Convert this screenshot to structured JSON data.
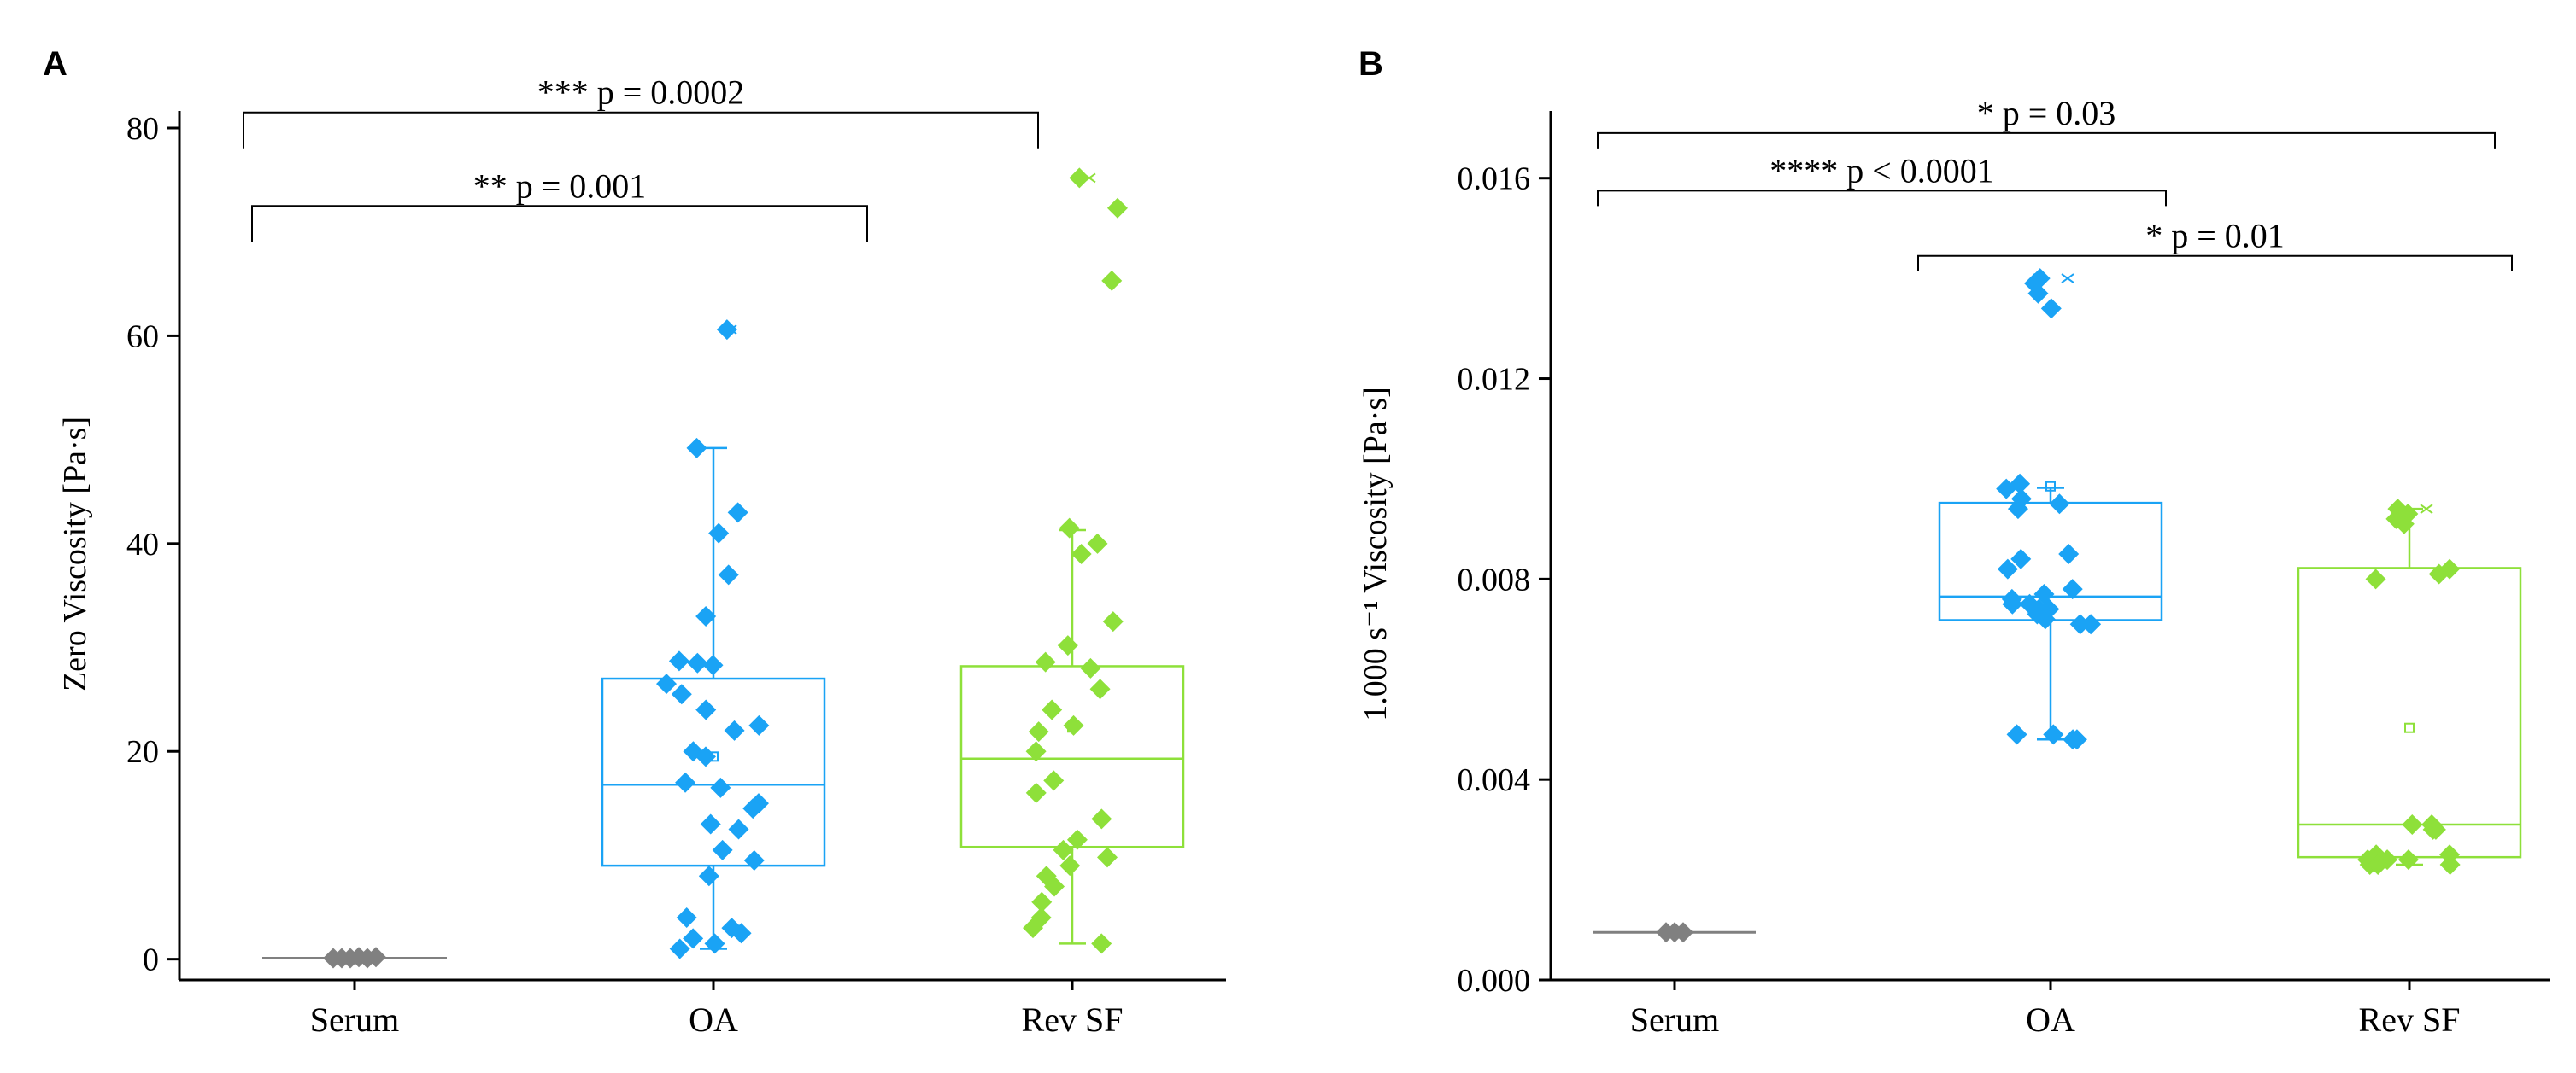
{
  "colors": {
    "serum": "#808080",
    "oa": "#1aa3f5",
    "revsf": "#8ee03a",
    "axis": "#000000"
  },
  "chart_data": [
    {
      "panel": "A",
      "type": "box",
      "title": "",
      "xlabel": "",
      "ylabel": "Zero Viscosity [Pa·s]",
      "categories": [
        "Serum",
        "OA",
        "Rev SF"
      ],
      "ylim": [
        -2,
        80
      ],
      "yticks": [
        0,
        20,
        40,
        60,
        80
      ],
      "ytick_labels": [
        "0",
        "20",
        "40",
        "60",
        "80"
      ],
      "boxes": [
        {
          "name": "Serum",
          "q1": 0.05,
          "median": 0.1,
          "q3": 0.15,
          "whisker_low": 0.0,
          "whisker_high": 0.2,
          "mean": 0.1,
          "max_marker": null
        },
        {
          "name": "OA",
          "q1": 9.0,
          "median": 16.8,
          "q3": 27.0,
          "whisker_low": 1.0,
          "whisker_high": 49.2,
          "mean": 19.5,
          "max_marker": 60.6
        },
        {
          "name": "Rev SF",
          "q1": 10.8,
          "median": 19.3,
          "q3": 28.2,
          "whisker_low": 1.5,
          "whisker_high": 41.3,
          "mean": 22.3,
          "max_marker": 75.2
        }
      ],
      "points": [
        {
          "group": "Serum",
          "values": [
            0.1,
            0.1,
            0.1,
            0.2,
            0.1,
            0.2
          ]
        },
        {
          "group": "OA",
          "values": [
            60.6,
            49.2,
            43.0,
            41.0,
            37.0,
            33.0,
            28.7,
            28.5,
            28.3,
            26.5,
            25.5,
            24.0,
            22.5,
            22.0,
            20.0,
            19.5,
            17.0,
            16.5,
            15.0,
            14.5,
            13.0,
            12.5,
            10.5,
            9.5,
            8.0,
            4.0,
            3.0,
            2.5,
            2.0,
            1.5,
            1.0
          ]
        },
        {
          "group": "Rev SF",
          "values": [
            75.2,
            72.3,
            65.3,
            41.5,
            40.0,
            39.0,
            32.5,
            30.2,
            28.6,
            28.0,
            26.0,
            24.0,
            22.5,
            21.9,
            20.0,
            17.2,
            16.0,
            13.5,
            11.5,
            10.5,
            9.8,
            9.0,
            8.0,
            7.0,
            5.5,
            4.0,
            3.0,
            1.5
          ]
        }
      ],
      "annotations": [
        {
          "text": "*** p = 0.0002",
          "from": "Serum",
          "to": "Rev SF",
          "y": 81.5
        },
        {
          "text": "** p = 0.001",
          "from": "Serum",
          "to": "OA",
          "y": 72.5
        }
      ]
    },
    {
      "panel": "B",
      "type": "box",
      "title": "",
      "xlabel": "",
      "ylabel": "1.000 s⁻¹ Viscosity [Pa·s]",
      "categories": [
        "Serum",
        "OA",
        "Rev SF"
      ],
      "ylim": [
        0,
        0.017
      ],
      "yticks": [
        0,
        0.004,
        0.008,
        0.012,
        0.016
      ],
      "ytick_labels": [
        "0.000",
        "0.004",
        "0.008",
        "0.012",
        "0.016"
      ],
      "boxes": [
        {
          "name": "Serum",
          "q1": 0.00095,
          "median": 0.00095,
          "q3": 0.00095,
          "whisker_low": 0.00095,
          "whisker_high": 0.00095,
          "mean": 0.00095,
          "max_marker": null
        },
        {
          "name": "OA",
          "q1": 0.00718,
          "median": 0.00765,
          "q3": 0.00952,
          "whisker_low": 0.0048,
          "whisker_high": 0.00982,
          "mean": 0.00985,
          "max_marker": 0.014
        },
        {
          "name": "Rev SF",
          "q1": 0.00245,
          "median": 0.0031,
          "q3": 0.00822,
          "whisker_low": 0.0023,
          "whisker_high": 0.0094,
          "mean": 0.00503,
          "max_marker": 0.0094
        }
      ],
      "points": [
        {
          "group": "Serum",
          "values": [
            0.00095,
            0.00095,
            0.00095
          ]
        },
        {
          "group": "OA",
          "values": [
            0.014,
            0.0139,
            0.0137,
            0.0134,
            0.0099,
            0.0098,
            0.0096,
            0.0095,
            0.0094,
            0.0085,
            0.0084,
            0.0082,
            0.0078,
            0.0077,
            0.0076,
            0.0075,
            0.0075,
            0.0074,
            0.0074,
            0.0073,
            0.0072,
            0.0071,
            0.0071,
            0.0049,
            0.0049,
            0.0048,
            0.0048
          ]
        },
        {
          "group": "Rev SF",
          "values": [
            0.0094,
            0.0093,
            0.0092,
            0.0091,
            0.0082,
            0.0081,
            0.008,
            0.0031,
            0.0031,
            0.003,
            0.003,
            0.0025,
            0.0025,
            0.0024,
            0.0024,
            0.0024,
            0.0023,
            0.0023,
            0.0023
          ]
        }
      ],
      "annotations": [
        {
          "text": "* p = 0.03",
          "from": "Serum",
          "to": "Rev SF",
          "y": 0.0169
        },
        {
          "text": "**** p < 0.0001",
          "from": "Serum",
          "to": "OA",
          "y": 0.01575
        },
        {
          "text": "* p = 0.01",
          "from": "OA",
          "to": "Rev SF",
          "y": 0.01445
        }
      ]
    }
  ]
}
